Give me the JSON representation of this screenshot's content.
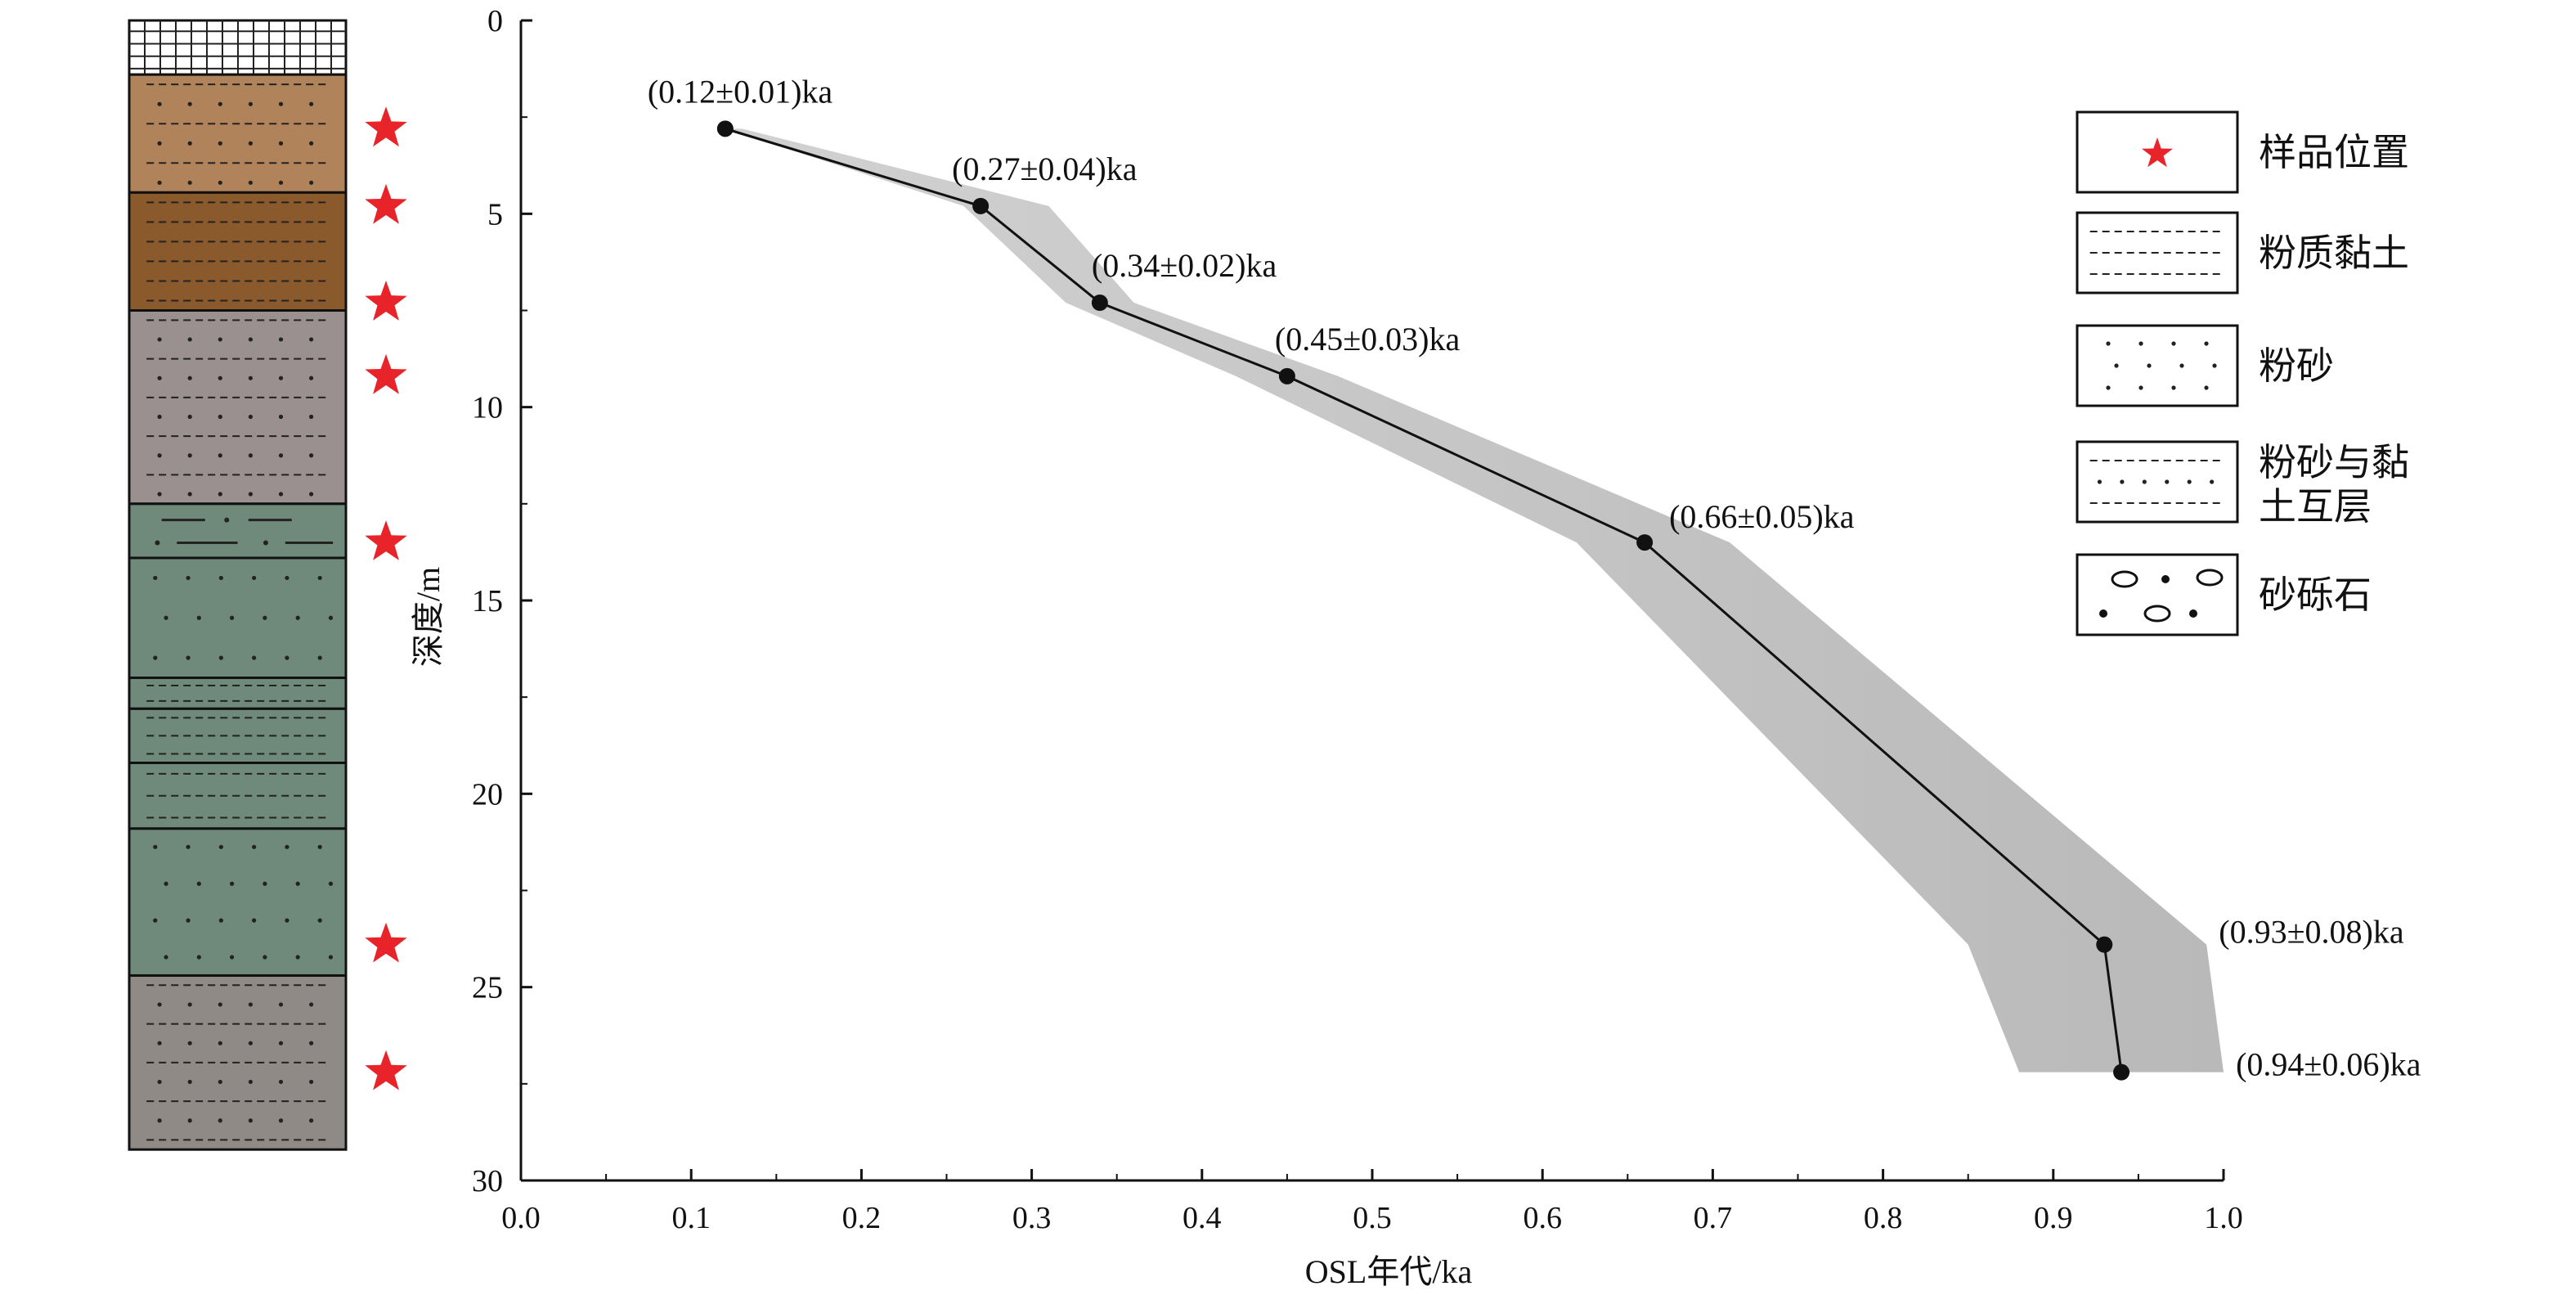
{
  "chart_data": {
    "type": "line",
    "xlabel": "OSL年代/ka",
    "ylabel": "深度/m",
    "xlim": [
      0.0,
      1.0
    ],
    "ylim": [
      0,
      30
    ],
    "y_inverted": true,
    "grid": false,
    "x_ticks": [
      "0.0",
      "0.1",
      "0.2",
      "0.3",
      "0.4",
      "0.5",
      "0.6",
      "0.7",
      "0.8",
      "0.9",
      "1.0"
    ],
    "y_ticks": [
      "0",
      "5",
      "10",
      "15",
      "20",
      "25",
      "30"
    ],
    "series": [
      {
        "points": [
          {
            "age": 0.12,
            "depth": 2.8,
            "label": "(0.12±0.01)ka"
          },
          {
            "age": 0.27,
            "depth": 4.8,
            "label": "(0.27±0.04)ka"
          },
          {
            "age": 0.34,
            "depth": 7.3,
            "label": "(0.34±0.02)ka"
          },
          {
            "age": 0.45,
            "depth": 9.2,
            "label": "(0.45±0.03)ka"
          },
          {
            "age": 0.66,
            "depth": 13.5,
            "label": "(0.66±0.05)ka"
          },
          {
            "age": 0.93,
            "depth": 23.9,
            "label": "(0.93±0.08)ka"
          },
          {
            "age": 0.94,
            "depth": 27.2,
            "label": "(0.94±0.06)ka"
          }
        ]
      }
    ],
    "uncertainty_band": {
      "min_age": [
        0.12,
        0.26,
        0.32,
        0.42,
        0.62,
        0.85,
        0.88
      ],
      "max_age": [
        0.13,
        0.31,
        0.36,
        0.48,
        0.71,
        0.99,
        1.0
      ]
    },
    "legend": {
      "placement": "right",
      "entries": [
        {
          "icon": "red-star",
          "label": "样品位置"
        },
        {
          "icon": "dashed-lines-pattern",
          "label": "粉质黏土"
        },
        {
          "icon": "dots-pattern",
          "label": "粉砂"
        },
        {
          "icon": "dash-dot-lines-pattern",
          "label": "粉砂与黏",
          "label2": "土互层"
        },
        {
          "icon": "gravel-pattern",
          "label": "砂砾石"
        }
      ]
    },
    "stratigraphic_column": {
      "layers": [
        {
          "top": 0,
          "bottom": 1.4,
          "color": "#ffffff",
          "pattern": "grid"
        },
        {
          "top": 1.4,
          "bottom": 4.45,
          "color": "#b0835a",
          "pattern": "dash-dot"
        },
        {
          "top": 4.45,
          "bottom": 7.5,
          "color": "#8a5a2c",
          "pattern": "dash"
        },
        {
          "top": 7.5,
          "bottom": 12.5,
          "color": "#9a9090",
          "pattern": "dash-dot"
        },
        {
          "top": 12.5,
          "bottom": 13.9,
          "color": "#6f8a7a",
          "pattern": "gravel"
        },
        {
          "top": 13.9,
          "bottom": 17.0,
          "color": "#6f8a7a",
          "pattern": "dots"
        },
        {
          "top": 17.0,
          "bottom": 17.8,
          "color": "#6f8a7a",
          "pattern": "dash"
        },
        {
          "top": 17.8,
          "bottom": 19.2,
          "color": "#6f8a7a",
          "pattern": "dash"
        },
        {
          "top": 19.2,
          "bottom": 20.9,
          "color": "#6f8a7a",
          "pattern": "dash"
        },
        {
          "top": 20.9,
          "bottom": 24.7,
          "color": "#6f8a7a",
          "pattern": "dots"
        },
        {
          "top": 24.7,
          "bottom": 29.2,
          "color": "#8f8a86",
          "pattern": "dash-dot"
        }
      ],
      "sample_depths": [
        2.8,
        4.8,
        7.3,
        9.2,
        13.5,
        23.9,
        27.2
      ],
      "star_color": "#e8242a"
    }
  }
}
